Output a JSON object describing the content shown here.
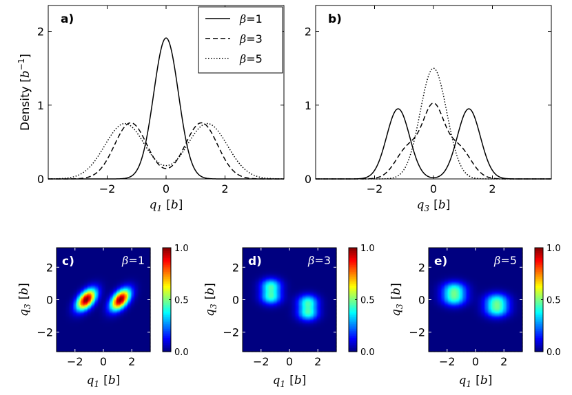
{
  "chart_data": [
    {
      "id": "a",
      "type": "line",
      "panel_label": "a)",
      "xlabel": "q1 [b]",
      "ylabel": "Density [b⁻¹]",
      "xlim": [
        -4,
        4
      ],
      "ylim": [
        0,
        2.35
      ],
      "xticks": [
        -2,
        0,
        2
      ],
      "xtick_labels": [
        "−2",
        "0",
        "2"
      ],
      "yticks": [
        0,
        1,
        2
      ],
      "ytick_labels": [
        "0",
        "1",
        "2"
      ],
      "legend": {
        "placement": "top-right",
        "entries": [
          {
            "label": "β=1",
            "style": "solid"
          },
          {
            "label": "β=3",
            "style": "dashed"
          },
          {
            "label": "β=5",
            "style": "dotted"
          }
        ]
      },
      "series": [
        {
          "name": "β=1",
          "style": "solid",
          "model": "gaussian-mix",
          "components": [
            {
              "mu": 0,
              "sigma": 0.42,
              "amp": 1.91
            }
          ]
        },
        {
          "name": "β=3",
          "style": "dashed",
          "model": "gaussian-mix",
          "components": [
            {
              "mu": -1.2,
              "sigma": 0.55,
              "amp": 0.76
            },
            {
              "mu": 1.2,
              "sigma": 0.55,
              "amp": 0.76
            }
          ]
        },
        {
          "name": "β=5",
          "style": "dotted",
          "model": "gaussian-mix",
          "components": [
            {
              "mu": -1.4,
              "sigma": 0.68,
              "amp": 0.75
            },
            {
              "mu": 1.4,
              "sigma": 0.68,
              "amp": 0.75
            }
          ]
        }
      ]
    },
    {
      "id": "b",
      "type": "line",
      "panel_label": "b)",
      "xlabel": "q3 [b]",
      "ylabel": "",
      "xlim": [
        -4,
        4
      ],
      "ylim": [
        0,
        2.35
      ],
      "xticks": [
        -2,
        0,
        2
      ],
      "xtick_labels": [
        "−2",
        "0",
        "2"
      ],
      "yticks": [
        0,
        1,
        2
      ],
      "ytick_labels": [
        "0",
        "1",
        "2"
      ],
      "series": [
        {
          "name": "β=1",
          "style": "solid",
          "model": "gaussian-mix",
          "components": [
            {
              "mu": -1.2,
              "sigma": 0.39,
              "amp": 0.95
            },
            {
              "mu": 1.2,
              "sigma": 0.39,
              "amp": 0.95
            }
          ]
        },
        {
          "name": "β=3",
          "style": "dashed",
          "model": "gaussian-mix",
          "components": [
            {
              "mu": 0,
              "sigma": 0.36,
              "amp": 0.92
            },
            {
              "mu": -0.85,
              "sigma": 0.42,
              "amp": 0.42
            },
            {
              "mu": 0.85,
              "sigma": 0.42,
              "amp": 0.42
            }
          ]
        },
        {
          "name": "β=5",
          "style": "dotted",
          "model": "gaussian-mix",
          "components": [
            {
              "mu": 0,
              "sigma": 0.45,
              "amp": 1.5
            }
          ]
        }
      ]
    },
    {
      "id": "c",
      "type": "heatmap",
      "panel_label": "c)",
      "annotation": "β=1",
      "xlabel": "q1 [b]",
      "ylabel": "q3 [b]",
      "xlim": [
        -3.3,
        3.3
      ],
      "ylim": [
        -3.2,
        3.2
      ],
      "xticks": [
        -2,
        0,
        2
      ],
      "xtick_labels": [
        "−2",
        "0",
        "2"
      ],
      "yticks": [
        -2,
        0,
        2
      ],
      "ytick_labels": [
        "−2",
        "0",
        "2"
      ],
      "colorbar": {
        "ticks": [
          0.0,
          0.5,
          1.0
        ],
        "tick_labels": [
          "0.0",
          "0.5",
          "1.0"
        ],
        "colormap": "jet"
      },
      "blobs": [
        {
          "x": -1.2,
          "y": 0.0,
          "sx": 0.48,
          "sy": 0.45,
          "rho": 0.5,
          "amp": 1.0
        },
        {
          "x": 1.2,
          "y": 0.0,
          "sx": 0.48,
          "sy": 0.45,
          "rho": 0.5,
          "amp": 1.0
        }
      ]
    },
    {
      "id": "d",
      "type": "heatmap",
      "panel_label": "d)",
      "annotation": "β=3",
      "xlabel": "q1 [b]",
      "ylabel": "q3 [b]",
      "xlim": [
        -3.3,
        3.3
      ],
      "ylim": [
        -3.2,
        3.2
      ],
      "xticks": [
        -2,
        0,
        2
      ],
      "xtick_labels": [
        "−2",
        "0",
        "2"
      ],
      "yticks": [
        -2,
        0,
        2
      ],
      "ytick_labels": [
        "−2",
        "0",
        "2"
      ],
      "colorbar": {
        "ticks": [
          0.0,
          0.5,
          1.0
        ],
        "tick_labels": [
          "0.0",
          "0.5",
          "1.0"
        ],
        "colormap": "jet"
      },
      "blobs": [
        {
          "x": -1.3,
          "y": 0.85,
          "sx": 0.5,
          "sy": 0.32,
          "rho": 0,
          "amp": 0.4
        },
        {
          "x": -1.3,
          "y": 0.15,
          "sx": 0.5,
          "sy": 0.32,
          "rho": 0,
          "amp": 0.4
        },
        {
          "x": 1.3,
          "y": -0.15,
          "sx": 0.5,
          "sy": 0.32,
          "rho": 0,
          "amp": 0.4
        },
        {
          "x": 1.3,
          "y": -0.85,
          "sx": 0.5,
          "sy": 0.32,
          "rho": 0,
          "amp": 0.4
        }
      ]
    },
    {
      "id": "e",
      "type": "heatmap",
      "panel_label": "e)",
      "annotation": "β=5",
      "xlabel": "q1 [b]",
      "ylabel": "q3 [b]",
      "xlim": [
        -3.3,
        3.3
      ],
      "ylim": [
        -3.2,
        3.2
      ],
      "xticks": [
        -2,
        0,
        2
      ],
      "xtick_labels": [
        "−2",
        "0",
        "2"
      ],
      "yticks": [
        -2,
        0,
        2
      ],
      "ytick_labels": [
        "−2",
        "0",
        "2"
      ],
      "colorbar": {
        "ticks": [
          0.0,
          0.5,
          1.0
        ],
        "tick_labels": [
          "0.0",
          "0.5",
          "1.0"
        ],
        "colormap": "jet"
      },
      "blobs": [
        {
          "x": -1.5,
          "y": 0.65,
          "sx": 0.58,
          "sy": 0.32,
          "rho": 0,
          "amp": 0.38
        },
        {
          "x": -1.5,
          "y": 0.05,
          "sx": 0.58,
          "sy": 0.32,
          "rho": 0,
          "amp": 0.38
        },
        {
          "x": 1.5,
          "y": -0.05,
          "sx": 0.58,
          "sy": 0.32,
          "rho": 0,
          "amp": 0.38
        },
        {
          "x": 1.5,
          "y": -0.65,
          "sx": 0.58,
          "sy": 0.32,
          "rho": 0,
          "amp": 0.38
        }
      ]
    }
  ]
}
